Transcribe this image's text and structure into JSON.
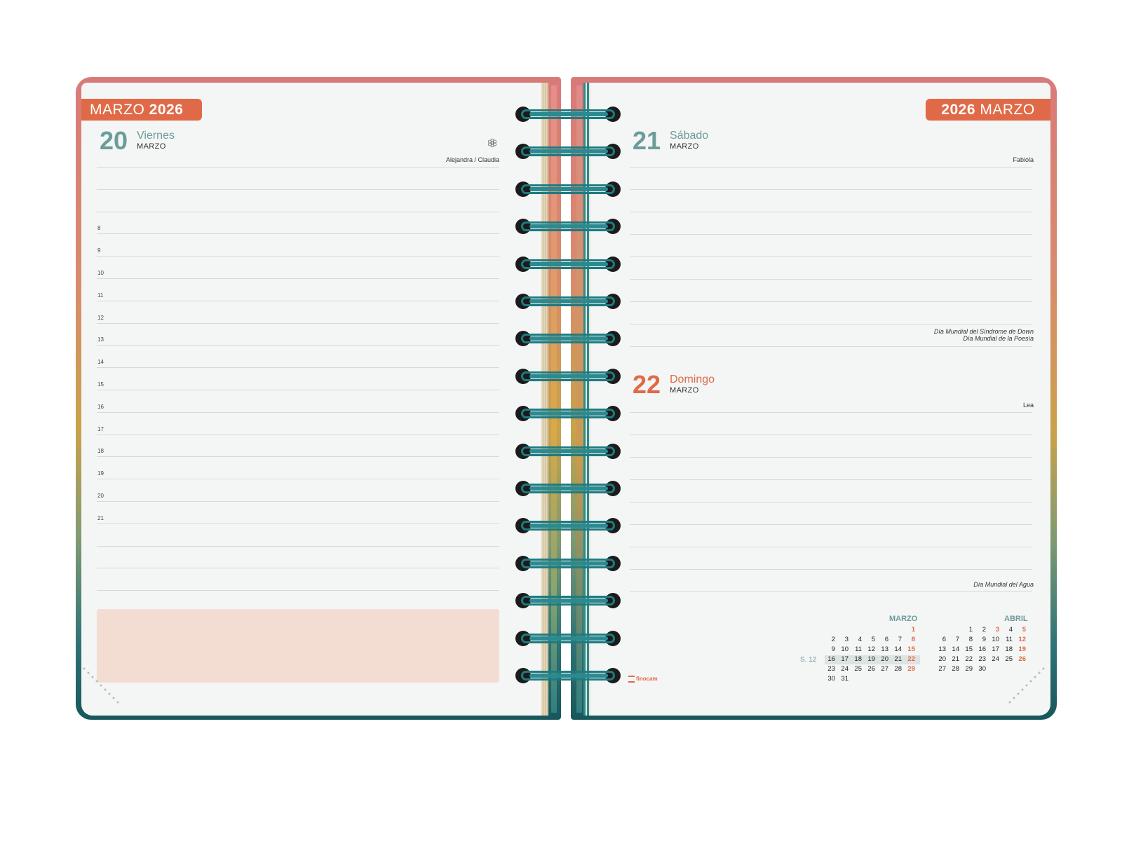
{
  "left_page": {
    "month_tab": {
      "month": "MARZO",
      "year": "2026"
    },
    "day": {
      "number": "20",
      "name": "Viernes",
      "month": "MARZO"
    },
    "saints": "Alejandra / Claudia",
    "hours": [
      "8",
      "9",
      "10",
      "11",
      "12",
      "13",
      "14",
      "15",
      "16",
      "17",
      "18",
      "19",
      "20",
      "21"
    ]
  },
  "right_page": {
    "month_tab": {
      "year": "2026",
      "month": "MARZO"
    },
    "day1": {
      "number": "21",
      "name": "Sábado",
      "month": "MARZO",
      "saints": "Fabiola",
      "events": [
        "Día Mundial del Síndrome de Down",
        "Día Mundial de la Poesía"
      ]
    },
    "day2": {
      "number": "22",
      "name": "Domingo",
      "month": "MARZO",
      "saints": "Lea",
      "events": [
        "Día Mundial del Agua"
      ]
    },
    "brand": "finocam",
    "mini_calendar": {
      "week_label": "S. 12",
      "marzo": {
        "title": "MARZO",
        "weeks": [
          [
            "",
            "",
            "",
            "",
            "",
            "",
            "1"
          ],
          [
            "2",
            "3",
            "4",
            "5",
            "6",
            "7",
            "8"
          ],
          [
            "9",
            "10",
            "11",
            "12",
            "13",
            "14",
            "15"
          ],
          [
            "16",
            "17",
            "18",
            "19",
            "20",
            "21",
            "22"
          ],
          [
            "23",
            "24",
            "25",
            "26",
            "27",
            "28",
            "29"
          ],
          [
            "30",
            "31",
            "",
            "",
            "",
            "",
            ""
          ]
        ]
      },
      "abril": {
        "title": "ABRIL",
        "weeks": [
          [
            "",
            "",
            "1",
            "2",
            "3",
            "4",
            "5"
          ],
          [
            "6",
            "7",
            "8",
            "9",
            "10",
            "11",
            "12"
          ],
          [
            "13",
            "14",
            "15",
            "16",
            "17",
            "18",
            "19"
          ],
          [
            "20",
            "21",
            "22",
            "23",
            "24",
            "25",
            "26"
          ],
          [
            "27",
            "28",
            "29",
            "30",
            "",
            "",
            ""
          ]
        ]
      }
    }
  },
  "colors": {
    "accent": "#e06a47",
    "teal": "#6b9c9a",
    "spiral": "#1f7a80",
    "notes_box": "#f3ddd3"
  }
}
